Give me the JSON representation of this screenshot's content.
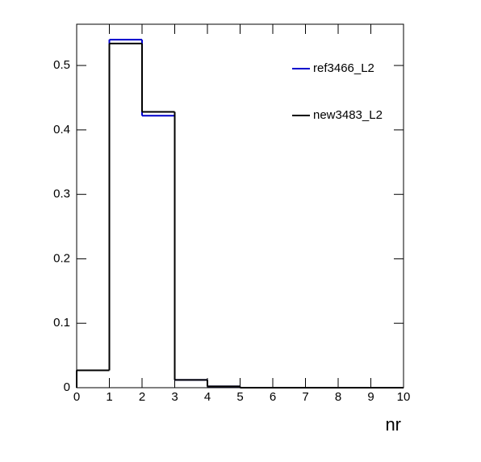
{
  "chart_data": {
    "type": "histogram",
    "x_label": "nr",
    "bins": [
      0,
      1,
      2,
      3,
      4,
      5,
      6,
      7,
      8,
      9,
      10
    ],
    "series": [
      {
        "name": "ref3466_L2",
        "color": "#0000cc",
        "values": [
          0.027,
          0.54,
          0.422,
          0.012,
          0.002,
          0,
          0,
          0,
          0,
          0
        ]
      },
      {
        "name": "new3483_L2",
        "color": "#000000",
        "values": [
          0.027,
          0.534,
          0.428,
          0.012,
          0.002,
          0,
          0,
          0,
          0,
          0
        ]
      }
    ],
    "xlim": [
      0,
      10
    ],
    "ylim": [
      0,
      0.564
    ],
    "xticks": [
      0,
      1,
      2,
      3,
      4,
      5,
      6,
      7,
      8,
      9,
      10
    ],
    "yticks": [
      0,
      0.1,
      0.2,
      0.3,
      0.4,
      0.5
    ],
    "legend": "top-right",
    "grid": false
  }
}
